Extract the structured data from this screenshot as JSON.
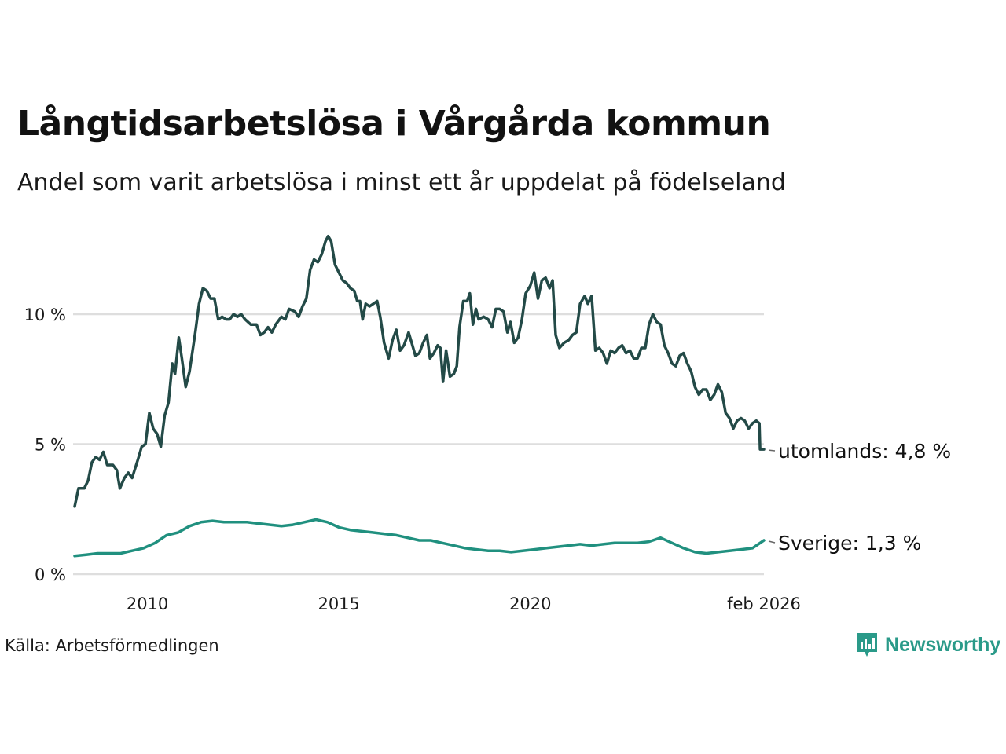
{
  "title": "Långtidsarbetslösa i Vårgårda kommun",
  "subtitle": "Andel som varit arbetslösa i minst ett år uppdelat på födelseland",
  "source": "Källa: Arbetsförmedlingen",
  "brand": {
    "name": "Newsworthy",
    "icon": "newsworthy-logo-icon",
    "color": "#2a9a89"
  },
  "colors": {
    "utomlands": "#234a47",
    "sverige": "#20907f",
    "grid": "#dedede"
  },
  "chart_data": {
    "type": "line",
    "title": "Långtidsarbetslösa i Vårgårda kommun",
    "xlabel": "",
    "ylabel": "",
    "xlim": [
      2008.1,
      2026.1
    ],
    "ylim": [
      0,
      13
    ],
    "y_ticks": [
      0,
      5,
      10
    ],
    "y_tick_labels": [
      "0 %",
      "5 %",
      "10 %"
    ],
    "x_ticks": [
      2010,
      2015,
      2020,
      2026.1
    ],
    "x_tick_labels": [
      "2010",
      "2015",
      "2020",
      "feb 2026"
    ],
    "grid": true,
    "series": [
      {
        "name": "utomlands",
        "end_label": "utomlands: 4,8 %",
        "color": "#234a47",
        "points": [
          [
            2008.1,
            2.6
          ],
          [
            2008.2,
            3.3
          ],
          [
            2008.35,
            3.3
          ],
          [
            2008.45,
            3.6
          ],
          [
            2008.55,
            4.3
          ],
          [
            2008.65,
            4.5
          ],
          [
            2008.75,
            4.4
          ],
          [
            2008.85,
            4.7
          ],
          [
            2008.95,
            4.2
          ],
          [
            2009.1,
            4.2
          ],
          [
            2009.2,
            4.0
          ],
          [
            2009.28,
            3.3
          ],
          [
            2009.4,
            3.7
          ],
          [
            2009.5,
            3.9
          ],
          [
            2009.6,
            3.7
          ],
          [
            2009.75,
            4.4
          ],
          [
            2009.85,
            4.9
          ],
          [
            2009.95,
            5.0
          ],
          [
            2010.05,
            6.2
          ],
          [
            2010.15,
            5.6
          ],
          [
            2010.25,
            5.4
          ],
          [
            2010.35,
            4.9
          ],
          [
            2010.45,
            6.1
          ],
          [
            2010.55,
            6.6
          ],
          [
            2010.65,
            8.1
          ],
          [
            2010.72,
            7.7
          ],
          [
            2010.82,
            9.1
          ],
          [
            2010.9,
            8.3
          ],
          [
            2011.0,
            7.2
          ],
          [
            2011.1,
            7.8
          ],
          [
            2011.25,
            9.3
          ],
          [
            2011.35,
            10.4
          ],
          [
            2011.45,
            11.0
          ],
          [
            2011.55,
            10.9
          ],
          [
            2011.65,
            10.6
          ],
          [
            2011.75,
            10.6
          ],
          [
            2011.85,
            9.8
          ],
          [
            2011.95,
            9.9
          ],
          [
            2012.05,
            9.8
          ],
          [
            2012.15,
            9.8
          ],
          [
            2012.25,
            10.0
          ],
          [
            2012.35,
            9.9
          ],
          [
            2012.45,
            10.0
          ],
          [
            2012.55,
            9.8
          ],
          [
            2012.7,
            9.6
          ],
          [
            2012.85,
            9.6
          ],
          [
            2012.95,
            9.2
          ],
          [
            2013.05,
            9.3
          ],
          [
            2013.15,
            9.5
          ],
          [
            2013.25,
            9.3
          ],
          [
            2013.35,
            9.6
          ],
          [
            2013.5,
            9.9
          ],
          [
            2013.6,
            9.8
          ],
          [
            2013.7,
            10.2
          ],
          [
            2013.85,
            10.1
          ],
          [
            2013.95,
            9.9
          ],
          [
            2014.05,
            10.3
          ],
          [
            2014.15,
            10.6
          ],
          [
            2014.25,
            11.7
          ],
          [
            2014.35,
            12.1
          ],
          [
            2014.45,
            12.0
          ],
          [
            2014.55,
            12.3
          ],
          [
            2014.65,
            12.8
          ],
          [
            2014.72,
            13.0
          ],
          [
            2014.8,
            12.8
          ],
          [
            2014.9,
            11.9
          ],
          [
            2015.0,
            11.6
          ],
          [
            2015.1,
            11.3
          ],
          [
            2015.2,
            11.2
          ],
          [
            2015.3,
            11.0
          ],
          [
            2015.4,
            10.9
          ],
          [
            2015.48,
            10.5
          ],
          [
            2015.55,
            10.5
          ],
          [
            2015.62,
            9.8
          ],
          [
            2015.7,
            10.4
          ],
          [
            2015.8,
            10.3
          ],
          [
            2015.9,
            10.4
          ],
          [
            2016.0,
            10.5
          ],
          [
            2016.08,
            9.9
          ],
          [
            2016.18,
            8.9
          ],
          [
            2016.3,
            8.3
          ],
          [
            2016.4,
            9.0
          ],
          [
            2016.5,
            9.4
          ],
          [
            2016.6,
            8.6
          ],
          [
            2016.7,
            8.8
          ],
          [
            2016.82,
            9.3
          ],
          [
            2016.9,
            8.9
          ],
          [
            2017.0,
            8.4
          ],
          [
            2017.1,
            8.5
          ],
          [
            2017.2,
            8.9
          ],
          [
            2017.3,
            9.2
          ],
          [
            2017.38,
            8.3
          ],
          [
            2017.48,
            8.5
          ],
          [
            2017.58,
            8.8
          ],
          [
            2017.65,
            8.7
          ],
          [
            2017.72,
            7.4
          ],
          [
            2017.8,
            8.6
          ],
          [
            2017.9,
            7.6
          ],
          [
            2018.0,
            7.7
          ],
          [
            2018.08,
            8.0
          ],
          [
            2018.15,
            9.5
          ],
          [
            2018.25,
            10.5
          ],
          [
            2018.35,
            10.5
          ],
          [
            2018.42,
            10.8
          ],
          [
            2018.5,
            9.6
          ],
          [
            2018.58,
            10.2
          ],
          [
            2018.65,
            9.8
          ],
          [
            2018.78,
            9.9
          ],
          [
            2018.9,
            9.8
          ],
          [
            2019.0,
            9.5
          ],
          [
            2019.1,
            10.2
          ],
          [
            2019.2,
            10.2
          ],
          [
            2019.3,
            10.1
          ],
          [
            2019.4,
            9.3
          ],
          [
            2019.48,
            9.7
          ],
          [
            2019.58,
            8.9
          ],
          [
            2019.68,
            9.1
          ],
          [
            2019.78,
            9.8
          ],
          [
            2019.88,
            10.8
          ],
          [
            2020.0,
            11.1
          ],
          [
            2020.1,
            11.6
          ],
          [
            2020.2,
            10.6
          ],
          [
            2020.3,
            11.3
          ],
          [
            2020.4,
            11.4
          ],
          [
            2020.5,
            11.0
          ],
          [
            2020.58,
            11.3
          ],
          [
            2020.66,
            9.2
          ],
          [
            2020.76,
            8.7
          ],
          [
            2020.88,
            8.9
          ],
          [
            2021.0,
            9.0
          ],
          [
            2021.1,
            9.2
          ],
          [
            2021.2,
            9.3
          ],
          [
            2021.3,
            10.4
          ],
          [
            2021.42,
            10.7
          ],
          [
            2021.5,
            10.4
          ],
          [
            2021.6,
            10.7
          ],
          [
            2021.7,
            8.6
          ],
          [
            2021.8,
            8.7
          ],
          [
            2021.9,
            8.5
          ],
          [
            2022.0,
            8.1
          ],
          [
            2022.1,
            8.6
          ],
          [
            2022.2,
            8.5
          ],
          [
            2022.3,
            8.7
          ],
          [
            2022.4,
            8.8
          ],
          [
            2022.5,
            8.5
          ],
          [
            2022.6,
            8.6
          ],
          [
            2022.7,
            8.3
          ],
          [
            2022.8,
            8.3
          ],
          [
            2022.9,
            8.7
          ],
          [
            2023.0,
            8.7
          ],
          [
            2023.1,
            9.6
          ],
          [
            2023.2,
            10.0
          ],
          [
            2023.3,
            9.7
          ],
          [
            2023.4,
            9.6
          ],
          [
            2023.5,
            8.8
          ],
          [
            2023.6,
            8.5
          ],
          [
            2023.7,
            8.1
          ],
          [
            2023.8,
            8.0
          ],
          [
            2023.9,
            8.4
          ],
          [
            2024.0,
            8.5
          ],
          [
            2024.1,
            8.1
          ],
          [
            2024.2,
            7.8
          ],
          [
            2024.3,
            7.2
          ],
          [
            2024.4,
            6.9
          ],
          [
            2024.5,
            7.1
          ],
          [
            2024.6,
            7.1
          ],
          [
            2024.7,
            6.7
          ],
          [
            2024.8,
            6.9
          ],
          [
            2024.9,
            7.3
          ],
          [
            2025.0,
            7.0
          ],
          [
            2025.1,
            6.2
          ],
          [
            2025.2,
            6.0
          ],
          [
            2025.3,
            5.6
          ],
          [
            2025.4,
            5.9
          ],
          [
            2025.5,
            6.0
          ],
          [
            2025.6,
            5.9
          ],
          [
            2025.7,
            5.6
          ],
          [
            2025.8,
            5.8
          ],
          [
            2025.9,
            5.9
          ],
          [
            2025.98,
            5.8
          ],
          [
            2026.0,
            4.8
          ],
          [
            2026.1,
            4.8
          ]
        ]
      },
      {
        "name": "Sverige",
        "end_label": "Sverige: 1,3 %",
        "color": "#20907f",
        "points": [
          [
            2008.1,
            0.7
          ],
          [
            2008.4,
            0.75
          ],
          [
            2008.7,
            0.8
          ],
          [
            2009.0,
            0.8
          ],
          [
            2009.3,
            0.8
          ],
          [
            2009.6,
            0.9
          ],
          [
            2009.9,
            1.0
          ],
          [
            2010.2,
            1.2
          ],
          [
            2010.5,
            1.5
          ],
          [
            2010.8,
            1.6
          ],
          [
            2011.1,
            1.85
          ],
          [
            2011.4,
            2.0
          ],
          [
            2011.7,
            2.05
          ],
          [
            2012.0,
            2.0
          ],
          [
            2012.3,
            2.0
          ],
          [
            2012.6,
            2.0
          ],
          [
            2012.9,
            1.95
          ],
          [
            2013.2,
            1.9
          ],
          [
            2013.5,
            1.85
          ],
          [
            2013.8,
            1.9
          ],
          [
            2014.1,
            2.0
          ],
          [
            2014.4,
            2.1
          ],
          [
            2014.7,
            2.0
          ],
          [
            2015.0,
            1.8
          ],
          [
            2015.3,
            1.7
          ],
          [
            2015.6,
            1.65
          ],
          [
            2015.9,
            1.6
          ],
          [
            2016.2,
            1.55
          ],
          [
            2016.5,
            1.5
          ],
          [
            2016.8,
            1.4
          ],
          [
            2017.1,
            1.3
          ],
          [
            2017.4,
            1.3
          ],
          [
            2017.7,
            1.2
          ],
          [
            2018.0,
            1.1
          ],
          [
            2018.3,
            1.0
          ],
          [
            2018.6,
            0.95
          ],
          [
            2018.9,
            0.9
          ],
          [
            2019.2,
            0.9
          ],
          [
            2019.5,
            0.85
          ],
          [
            2019.8,
            0.9
          ],
          [
            2020.1,
            0.95
          ],
          [
            2020.4,
            1.0
          ],
          [
            2020.7,
            1.05
          ],
          [
            2021.0,
            1.1
          ],
          [
            2021.3,
            1.15
          ],
          [
            2021.6,
            1.1
          ],
          [
            2021.9,
            1.15
          ],
          [
            2022.2,
            1.2
          ],
          [
            2022.5,
            1.2
          ],
          [
            2022.8,
            1.2
          ],
          [
            2023.1,
            1.25
          ],
          [
            2023.4,
            1.4
          ],
          [
            2023.7,
            1.2
          ],
          [
            2024.0,
            1.0
          ],
          [
            2024.3,
            0.85
          ],
          [
            2024.6,
            0.8
          ],
          [
            2024.9,
            0.85
          ],
          [
            2025.2,
            0.9
          ],
          [
            2025.5,
            0.95
          ],
          [
            2025.8,
            1.0
          ],
          [
            2026.1,
            1.3
          ]
        ]
      }
    ]
  }
}
